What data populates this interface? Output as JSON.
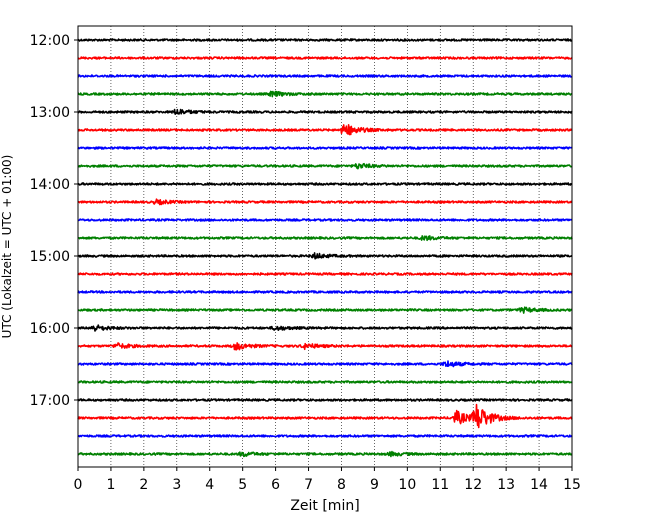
{
  "chart_data": {
    "type": "line",
    "title": "",
    "xlabel": "Zeit  [min]",
    "ylabel": "UTC (Lokalzeit = UTC + 01:00)",
    "xlim": [
      0,
      15
    ],
    "x_ticks": [
      "0",
      "1",
      "2",
      "3",
      "4",
      "5",
      "6",
      "7",
      "8",
      "9",
      "10",
      "11",
      "12",
      "13",
      "14",
      "15"
    ],
    "y_ticks": [
      "12:00",
      "13:00",
      "14:00",
      "15:00",
      "16:00",
      "17:00"
    ],
    "vertical_grid": true,
    "trace_interval_min": 15,
    "color_cycle": [
      "#000000",
      "#ff0000",
      "#0000ff",
      "#008000"
    ],
    "traces": [
      {
        "start": "12:00",
        "events": []
      },
      {
        "start": "12:15",
        "events": []
      },
      {
        "start": "12:30",
        "events": []
      },
      {
        "start": "12:45",
        "events": [
          {
            "t": 5.9,
            "amp": 0.3
          }
        ]
      },
      {
        "start": "13:00",
        "events": [
          {
            "t": 3.0,
            "amp": 0.35
          }
        ]
      },
      {
        "start": "13:15",
        "events": [
          {
            "t": 8.1,
            "amp": 0.8
          }
        ]
      },
      {
        "start": "13:30",
        "events": []
      },
      {
        "start": "13:45",
        "events": [
          {
            "t": 8.5,
            "amp": 0.3
          }
        ]
      },
      {
        "start": "14:00",
        "events": []
      },
      {
        "start": "14:15",
        "events": [
          {
            "t": 2.4,
            "amp": 0.25
          }
        ]
      },
      {
        "start": "14:30",
        "events": []
      },
      {
        "start": "14:45",
        "events": [
          {
            "t": 10.5,
            "amp": 0.25
          }
        ]
      },
      {
        "start": "15:00",
        "events": [
          {
            "t": 7.2,
            "amp": 0.3
          }
        ]
      },
      {
        "start": "15:15",
        "events": []
      },
      {
        "start": "15:30",
        "events": []
      },
      {
        "start": "15:45",
        "events": [
          {
            "t": 13.5,
            "amp": 0.3
          }
        ]
      },
      {
        "start": "16:00",
        "events": [
          {
            "t": 0.5,
            "amp": 0.35
          },
          {
            "t": 6.0,
            "amp": 0.25
          }
        ]
      },
      {
        "start": "16:15",
        "events": [
          {
            "t": 1.2,
            "amp": 0.3
          },
          {
            "t": 4.8,
            "amp": 0.45
          },
          {
            "t": 6.9,
            "amp": 0.3
          }
        ]
      },
      {
        "start": "16:30",
        "events": [
          {
            "t": 11.2,
            "amp": 0.35
          }
        ]
      },
      {
        "start": "16:45",
        "events": []
      },
      {
        "start": "17:00",
        "events": []
      },
      {
        "start": "17:15",
        "events": [
          {
            "t": 11.5,
            "amp": 0.8
          },
          {
            "t": 12.1,
            "amp": 1.6
          }
        ]
      },
      {
        "start": "17:30",
        "events": []
      },
      {
        "start": "17:45",
        "events": [
          {
            "t": 5.0,
            "amp": 0.25
          },
          {
            "t": 9.5,
            "amp": 0.2
          }
        ]
      }
    ]
  }
}
